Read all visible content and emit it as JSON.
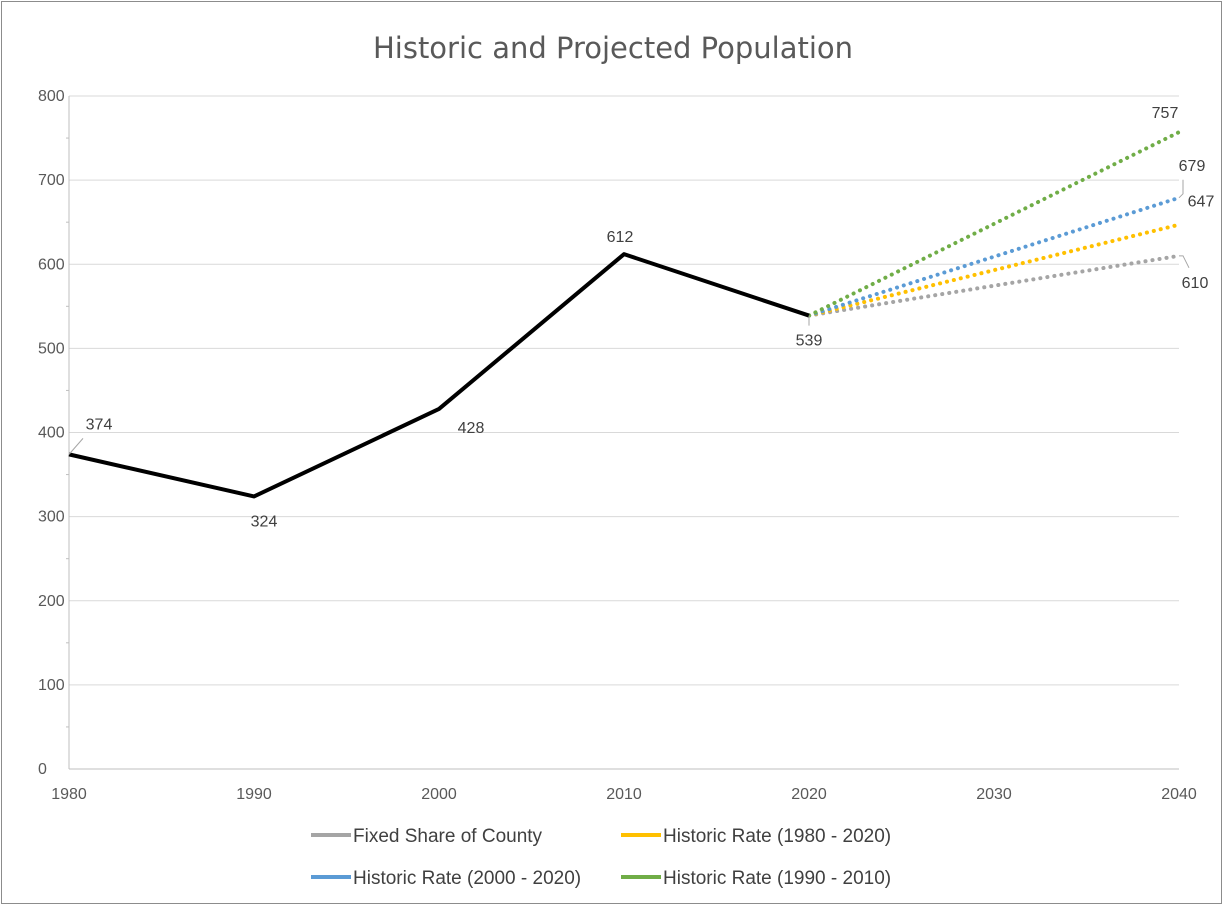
{
  "chart_data": {
    "type": "line",
    "title": "Historic and Projected Population",
    "xlabel": "",
    "ylabel": "",
    "x_ticks": [
      "1980",
      "1990",
      "2000",
      "2010",
      "2020",
      "2030",
      "2040"
    ],
    "y_ticks": [
      "0",
      "100",
      "200",
      "300",
      "400",
      "500",
      "600",
      "700",
      "800"
    ],
    "xlim": [
      1980,
      2040
    ],
    "ylim": [
      0,
      800
    ],
    "grid": "horizontal",
    "legend_position": "bottom",
    "historic": {
      "x": [
        1980,
        1990,
        2000,
        2010,
        2020
      ],
      "y": [
        374,
        324,
        428,
        612,
        539
      ],
      "labels": [
        "374",
        "324",
        "428",
        "612",
        "539"
      ],
      "color": "#000000"
    },
    "series": [
      {
        "name": "Fixed Share of County",
        "x": [
          2020,
          2040
        ],
        "y": [
          539,
          610
        ],
        "end_label": "610",
        "color": "#A5A5A5"
      },
      {
        "name": "Historic Rate (1980 - 2020)",
        "x": [
          2020,
          2040
        ],
        "y": [
          539,
          647
        ],
        "end_label": "647",
        "color": "#FFC000"
      },
      {
        "name": "Historic Rate (2000 - 2020)",
        "x": [
          2020,
          2040
        ],
        "y": [
          539,
          679
        ],
        "end_label": "679",
        "color": "#5B9BD5"
      },
      {
        "name": "Historic  Rate (1990 - 2010)",
        "x": [
          2020,
          2040
        ],
        "y": [
          539,
          757
        ],
        "end_label": "757",
        "color": "#70AD47"
      }
    ]
  }
}
